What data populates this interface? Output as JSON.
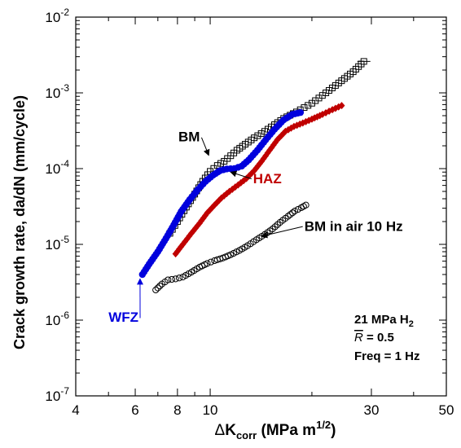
{
  "chart_data": {
    "type": "scatter",
    "x_scale": "log",
    "y_scale": "log",
    "xlim": [
      4,
      50
    ],
    "ylim": [
      1e-07,
      0.01
    ],
    "grid": false,
    "legend": "none",
    "xlabel": {
      "delta": "Δ",
      "main": "K",
      "sub": "corr",
      "unit": " (MPa m",
      "sup": "1/2",
      "close": ")"
    },
    "ylabel": "Crack growth rate, da/dN (mm/cycle)",
    "x_ticks": [
      {
        "value": 4,
        "label": "4"
      },
      {
        "value": 6,
        "label": "6"
      },
      {
        "value": 8,
        "label": "8"
      },
      {
        "value": 10,
        "label": "10"
      },
      {
        "value": 30,
        "label": "30"
      },
      {
        "value": 50,
        "label": "50"
      }
    ],
    "y_ticks": [
      {
        "value": 1e-07,
        "base": "10",
        "exp": "-7"
      },
      {
        "value": 1e-06,
        "base": "10",
        "exp": "-6"
      },
      {
        "value": 1e-05,
        "base": "10",
        "exp": "-5"
      },
      {
        "value": 0.0001,
        "base": "10",
        "exp": "-4"
      },
      {
        "value": 0.001,
        "base": "10",
        "exp": "-3"
      },
      {
        "value": 0.01,
        "base": "10",
        "exp": "-2"
      }
    ],
    "series": [
      {
        "name": "BM",
        "color": "#000000",
        "marker": "square-open",
        "points": [
          [
            7.6,
            1.4e-05
          ],
          [
            8.0,
            2e-05
          ],
          [
            8.5,
            3.1e-05
          ],
          [
            9.0,
            4.6e-05
          ],
          [
            9.5,
            6.8e-05
          ],
          [
            10.0,
            9.2e-05
          ],
          [
            10.5,
            0.00011
          ],
          [
            11.0,
            0.000125
          ],
          [
            11.5,
            0.000148
          ],
          [
            12.0,
            0.000175
          ],
          [
            12.7,
            0.00021
          ],
          [
            13.5,
            0.000255
          ],
          [
            14.5,
            0.00031
          ],
          [
            15.5,
            0.00038
          ],
          [
            16.5,
            0.00046
          ],
          [
            18.0,
            0.00056
          ],
          [
            20.0,
            0.00073
          ],
          [
            22.0,
            0.001
          ],
          [
            24.0,
            0.00135
          ],
          [
            26.5,
            0.0019
          ],
          [
            28.5,
            0.0026
          ]
        ]
      },
      {
        "name": "WFZ",
        "color": "#0000dd",
        "marker": "circle-filled",
        "points": [
          [
            6.3,
            4e-06
          ],
          [
            6.6,
            5.5e-06
          ],
          [
            7.0,
            8e-06
          ],
          [
            7.4,
            1.2e-05
          ],
          [
            7.8,
            1.8e-05
          ],
          [
            8.2,
            2.7e-05
          ],
          [
            8.7,
            3.9e-05
          ],
          [
            9.2,
            5.3e-05
          ],
          [
            9.7,
            6.8e-05
          ],
          [
            10.2,
            8.2e-05
          ],
          [
            10.7,
            9.4e-05
          ],
          [
            11.2,
            9.9e-05
          ],
          [
            11.8,
            0.0001
          ],
          [
            12.4,
            0.000108
          ],
          [
            13.0,
            0.00013
          ],
          [
            13.8,
            0.000175
          ],
          [
            14.6,
            0.00024
          ],
          [
            15.5,
            0.00033
          ],
          [
            16.5,
            0.00044
          ],
          [
            17.5,
            0.00052
          ],
          [
            18.5,
            0.00055
          ]
        ]
      },
      {
        "name": "HAZ",
        "color": "#c00000",
        "marker": "diamond-filled",
        "points": [
          [
            7.9,
            7.5e-06
          ],
          [
            8.3,
            1e-05
          ],
          [
            8.8,
            1.4e-05
          ],
          [
            9.3,
            1.9e-05
          ],
          [
            9.8,
            2.6e-05
          ],
          [
            10.3,
            3.3e-05
          ],
          [
            10.8,
            4.1e-05
          ],
          [
            11.4,
            5e-05
          ],
          [
            12.1,
            6.1e-05
          ],
          [
            12.8,
            7.4e-05
          ],
          [
            13.5,
            9.4e-05
          ],
          [
            14.2,
            0.000125
          ],
          [
            15.0,
            0.000175
          ],
          [
            15.8,
            0.00024
          ],
          [
            16.7,
            0.00031
          ],
          [
            17.7,
            0.00036
          ],
          [
            18.8,
            0.0004
          ],
          [
            20.0,
            0.00045
          ],
          [
            21.5,
            0.00052
          ],
          [
            23.0,
            0.0006
          ],
          [
            24.5,
            0.00068
          ]
        ]
      },
      {
        "name": "BM in air 10 Hz",
        "color": "#000000",
        "marker": "circle-open",
        "points": [
          [
            6.9,
            2.5e-06
          ],
          [
            7.2,
            3e-06
          ],
          [
            7.5,
            3.4e-06
          ],
          [
            7.9,
            3.5e-06
          ],
          [
            8.3,
            3.7e-06
          ],
          [
            8.8,
            4.3e-06
          ],
          [
            9.3,
            5e-06
          ],
          [
            9.8,
            5.6e-06
          ],
          [
            10.3,
            6.1e-06
          ],
          [
            10.9,
            6.6e-06
          ],
          [
            11.5,
            7.3e-06
          ],
          [
            12.2,
            8.3e-06
          ],
          [
            12.9,
            9.6e-06
          ],
          [
            13.7,
            1.15e-05
          ],
          [
            14.5,
            1.35e-05
          ],
          [
            15.3,
            1.6e-05
          ],
          [
            16.1,
            1.95e-05
          ],
          [
            17.0,
            2.35e-05
          ],
          [
            17.8,
            2.75e-05
          ],
          [
            18.6,
            3.05e-05
          ],
          [
            19.2,
            3.3e-05
          ]
        ]
      }
    ],
    "annotations": [
      {
        "text": "BM",
        "color": "#000000",
        "arrow_to": [
          9.9,
          0.00015
        ],
        "label_at": [
          8.05,
          0.00023
        ]
      },
      {
        "text": "HAZ",
        "color": "#c00000",
        "arrow_to": [
          11.5,
          9e-05
        ],
        "label_at": [
          13.4,
          6.4e-05
        ]
      },
      {
        "text": "BM in air 10 Hz",
        "color": "#000000",
        "arrow_to": [
          14.2,
          1.28e-05
        ],
        "label_at": [
          19.0,
          1.5e-05
        ]
      },
      {
        "text": "WFZ",
        "color": "#0000dd",
        "arrow_to": [
          6.2,
          3.5e-06
        ],
        "label_at": [
          5.0,
          9.5e-07
        ]
      }
    ],
    "conditions": {
      "line1": {
        "main": "21 MPa H",
        "sub": "2"
      },
      "line2": {
        "symbol": "R",
        "rest": " = 0.5"
      },
      "line3": "Freq = 1 Hz"
    }
  }
}
